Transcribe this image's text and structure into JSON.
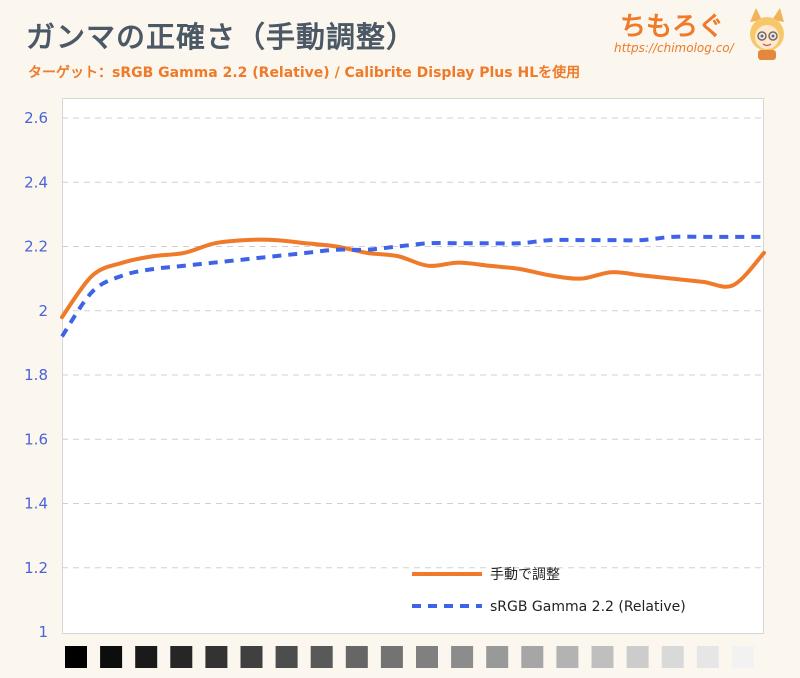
{
  "title": "ガンマの正確さ（手動調整）",
  "subtitle": "ターゲット：sRGB Gamma 2.2 (Relative) / Calibrite Display Plus HLを使用",
  "logo": {
    "name": "ちもろぐ",
    "url": "https://chimolog.co/",
    "mascot_icon": "fox-girl-mascot"
  },
  "colors": {
    "title": "#4b5866",
    "accent": "#ee7a2a",
    "series_manual": "#ee7a2a",
    "series_target": "#3e63e6",
    "tick": "#4a63d8",
    "grid": "#d0d0d0"
  },
  "chart_data": {
    "type": "line",
    "ylim": [
      1,
      2.6
    ],
    "yticks": [
      1,
      1.2,
      1.4,
      1.6,
      1.8,
      2,
      2.2,
      2.4,
      2.6
    ],
    "ytick_labels": [
      "1",
      "1.2",
      "1.4",
      "1.6",
      "1.8",
      "2",
      "2.2",
      "2.4",
      "2.6"
    ],
    "grid": "horizontal-dashed",
    "legend_position": "bottom-right",
    "x_axis_swatches": [
      "#000000",
      "#0d0d0d",
      "#1a1a1a",
      "#262626",
      "#333333",
      "#404040",
      "#4d4d4d",
      "#595959",
      "#666666",
      "#737373",
      "#808080",
      "#8c8c8c",
      "#999999",
      "#a6a6a6",
      "#b3b3b3",
      "#bfbfbf",
      "#cccccc",
      "#d9d9d9",
      "#e6e6e6",
      "#f2f2f2"
    ],
    "series": [
      {
        "name": "手動で調整",
        "style": "solid",
        "values": [
          1.98,
          2.11,
          2.15,
          2.17,
          2.18,
          2.21,
          2.22,
          2.22,
          2.21,
          2.2,
          2.18,
          2.17,
          2.14,
          2.15,
          2.14,
          2.13,
          2.11,
          2.1,
          2.12,
          2.11,
          2.1,
          2.09,
          2.08,
          2.18
        ]
      },
      {
        "name": "sRGB Gamma 2.2 (Relative)",
        "style": "dashed",
        "values": [
          1.92,
          2.06,
          2.11,
          2.13,
          2.14,
          2.15,
          2.16,
          2.17,
          2.18,
          2.19,
          2.19,
          2.2,
          2.21,
          2.21,
          2.21,
          2.21,
          2.22,
          2.22,
          2.22,
          2.22,
          2.23,
          2.23,
          2.23,
          2.23
        ]
      }
    ]
  }
}
